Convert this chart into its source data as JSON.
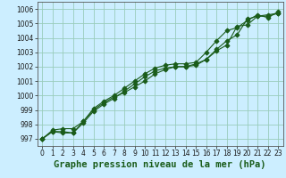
{
  "xlabel": "Graphe pression niveau de la mer (hPa)",
  "background_color": "#cceeff",
  "grid_color": "#99ccbb",
  "line_color": "#1a5c1a",
  "xlim": [
    -0.5,
    23.5
  ],
  "ylim": [
    996.5,
    1006.5
  ],
  "yticks": [
    997,
    998,
    999,
    1000,
    1001,
    1002,
    1003,
    1004,
    1005,
    1006
  ],
  "xticks": [
    0,
    1,
    2,
    3,
    4,
    5,
    6,
    7,
    8,
    9,
    10,
    11,
    12,
    13,
    14,
    15,
    16,
    17,
    18,
    19,
    20,
    21,
    22,
    23
  ],
  "line1_x": [
    0,
    1,
    2,
    3,
    4,
    5,
    6,
    7,
    8,
    9,
    10,
    11,
    12,
    13,
    14,
    15,
    16,
    17,
    18,
    19,
    20,
    21,
    22,
    23
  ],
  "line1_y": [
    997.0,
    997.6,
    997.7,
    997.7,
    998.2,
    999.0,
    999.5,
    999.9,
    1000.2,
    1000.6,
    1001.0,
    1001.5,
    1001.8,
    1002.0,
    1002.0,
    1002.1,
    1002.5,
    1003.2,
    1003.8,
    1004.2,
    1005.3,
    1005.5,
    1005.6,
    1005.7
  ],
  "line2_x": [
    0,
    1,
    2,
    3,
    4,
    5,
    6,
    7,
    8,
    9,
    10,
    11,
    12,
    13,
    14,
    15,
    16,
    17,
    18,
    19,
    20,
    21,
    22,
    23
  ],
  "line2_y": [
    997.0,
    997.5,
    997.4,
    997.4,
    998.1,
    998.9,
    999.4,
    999.8,
    1000.3,
    1000.8,
    1001.3,
    1001.7,
    1001.9,
    1002.0,
    1002.0,
    1002.2,
    1002.5,
    1003.1,
    1003.5,
    1004.8,
    1004.9,
    1005.5,
    1005.5,
    1005.7
  ],
  "line3_x": [
    0,
    1,
    2,
    3,
    4,
    5,
    6,
    7,
    8,
    9,
    10,
    11,
    12,
    13,
    14,
    15,
    16,
    17,
    18,
    19,
    20,
    21,
    22,
    23
  ],
  "line3_y": [
    997.0,
    997.5,
    997.5,
    997.4,
    998.2,
    999.1,
    999.6,
    1000.0,
    1000.5,
    1001.0,
    1001.5,
    1001.9,
    1002.1,
    1002.2,
    1002.2,
    1002.3,
    1003.0,
    1003.8,
    1004.5,
    1004.7,
    1005.2,
    1005.6,
    1005.4,
    1005.8
  ],
  "marker": "D",
  "markersize": 2.5,
  "linewidth": 0.8,
  "tick_fontsize": 5.5,
  "xlabel_fontsize": 7.5
}
